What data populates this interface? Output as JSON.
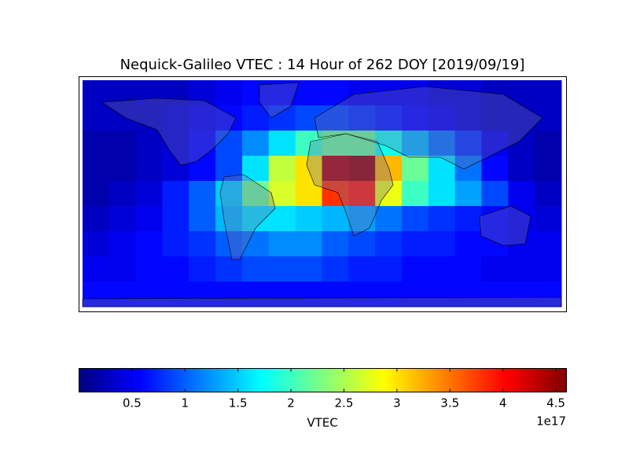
{
  "chart_data": {
    "type": "heatmap",
    "title": "Nequick-Galileo VTEC : 14 Hour of 262 DOY [2019/09/19]",
    "colormap": "jet",
    "z": [
      [
        0.3,
        0.3,
        0.3,
        0.3,
        0.4,
        0.5,
        0.6,
        0.6,
        0.6,
        0.6,
        0.5,
        0.5,
        0.5,
        0.4,
        0.4,
        0.3,
        0.3,
        0.3
      ],
      [
        0.3,
        0.3,
        0.3,
        0.4,
        0.5,
        0.6,
        0.7,
        0.8,
        0.9,
        0.9,
        0.8,
        0.7,
        0.6,
        0.5,
        0.4,
        0.3,
        0.3,
        0.3
      ],
      [
        0.2,
        0.2,
        0.3,
        0.4,
        0.6,
        0.9,
        1.2,
        1.6,
        2.0,
        2.2,
        2.2,
        1.8,
        1.4,
        1.1,
        0.8,
        0.5,
        0.3,
        0.2
      ],
      [
        0.2,
        0.2,
        0.3,
        0.4,
        0.6,
        0.9,
        1.6,
        2.6,
        3.0,
        4.4,
        4.5,
        3.2,
        2.2,
        1.6,
        1.1,
        0.6,
        0.3,
        0.2
      ],
      [
        0.2,
        0.3,
        0.4,
        0.7,
        1.0,
        1.5,
        2.2,
        2.7,
        3.0,
        3.8,
        3.9,
        2.8,
        2.0,
        1.6,
        1.3,
        0.9,
        0.5,
        0.3
      ],
      [
        0.3,
        0.4,
        0.5,
        0.7,
        1.0,
        1.4,
        1.6,
        1.6,
        1.5,
        1.4,
        1.3,
        1.1,
        0.9,
        0.8,
        0.7,
        0.6,
        0.5,
        0.4
      ],
      [
        0.4,
        0.5,
        0.6,
        0.7,
        0.8,
        1.0,
        1.1,
        1.2,
        1.2,
        1.0,
        0.9,
        0.8,
        0.7,
        0.7,
        0.6,
        0.6,
        0.5,
        0.5
      ],
      [
        0.5,
        0.5,
        0.6,
        0.6,
        0.7,
        0.8,
        0.9,
        0.9,
        0.9,
        0.8,
        0.7,
        0.7,
        0.6,
        0.6,
        0.6,
        0.5,
        0.5,
        0.5
      ],
      [
        0.6,
        0.6,
        0.6,
        0.6,
        0.6,
        0.6,
        0.6,
        0.6,
        0.6,
        0.6,
        0.6,
        0.6,
        0.6,
        0.6,
        0.6,
        0.6,
        0.6,
        0.6
      ]
    ],
    "clim": [
      0,
      4.6
    ],
    "colorbar_ticks": [
      0.5,
      1.0,
      1.5,
      2.0,
      2.5,
      3.0,
      3.5,
      4.0,
      4.5
    ],
    "colorbar_label": "VTEC",
    "colorbar_offset": "1e17"
  }
}
